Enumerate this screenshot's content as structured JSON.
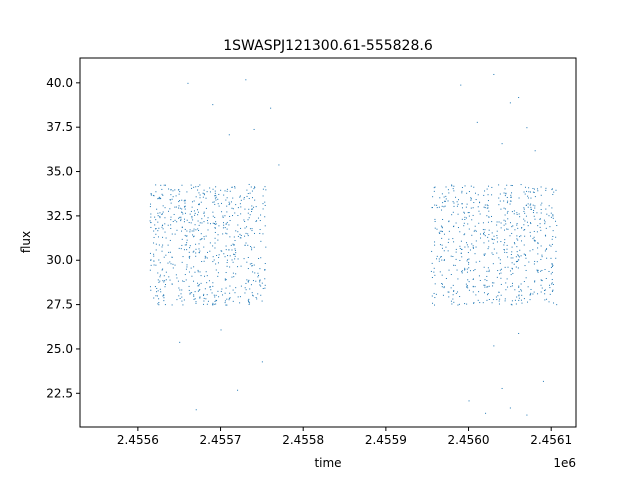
{
  "chart_data": {
    "type": "scatter",
    "title": "1SWASPJ121300.61-555828.6",
    "xlabel": "time",
    "ylabel": "flux",
    "x_offset_label": "1e6",
    "xlim": [
      2.45553,
      2.45613
    ],
    "ylim": [
      20.6,
      41.4
    ],
    "x_ticks": [
      2.4556,
      2.4557,
      2.4558,
      2.4559,
      2.456,
      2.4561
    ],
    "x_tick_labels": [
      "2.4556",
      "2.4557",
      "2.4558",
      "2.4559",
      "2.4560",
      "2.4561"
    ],
    "y_ticks": [
      22.5,
      25.0,
      27.5,
      30.0,
      32.5,
      35.0,
      37.5,
      40.0
    ],
    "y_tick_labels": [
      "22.5",
      "25.0",
      "27.5",
      "30.0",
      "32.5",
      "35.0",
      "37.5",
      "40.0"
    ],
    "grid": false,
    "marker_color": "#1f77b4",
    "series": [
      {
        "segments": [
          {
            "x_start": 2.455615,
            "x_end": 2.455755,
            "y_low": 27.5,
            "y_high": 34.3
          },
          {
            "x_start": 2.455955,
            "x_end": 2.456107,
            "y_low": 27.5,
            "y_high": 34.3
          }
        ],
        "outliers": [
          [
            2.45566,
            40.0
          ],
          [
            2.45569,
            38.8
          ],
          [
            2.45571,
            37.1
          ],
          [
            2.45573,
            40.2
          ],
          [
            2.45576,
            38.6
          ],
          [
            2.45572,
            22.7
          ],
          [
            2.45567,
            21.6
          ],
          [
            2.45575,
            24.3
          ],
          [
            2.45565,
            25.4
          ],
          [
            2.45574,
            37.4
          ],
          [
            2.4557,
            26.1
          ],
          [
            2.45577,
            35.4
          ],
          [
            2.45599,
            39.9
          ],
          [
            2.45603,
            40.5
          ],
          [
            2.45605,
            38.9
          ],
          [
            2.45607,
            37.5
          ],
          [
            2.45606,
            39.2
          ],
          [
            2.456,
            22.1
          ],
          [
            2.45602,
            21.4
          ],
          [
            2.45605,
            21.7
          ],
          [
            2.45607,
            21.3
          ],
          [
            2.45604,
            22.8
          ],
          [
            2.45609,
            23.2
          ],
          [
            2.45601,
            37.8
          ],
          [
            2.45604,
            36.6
          ],
          [
            2.45606,
            25.9
          ],
          [
            2.45603,
            25.2
          ],
          [
            2.45608,
            36.2
          ]
        ]
      }
    ]
  }
}
